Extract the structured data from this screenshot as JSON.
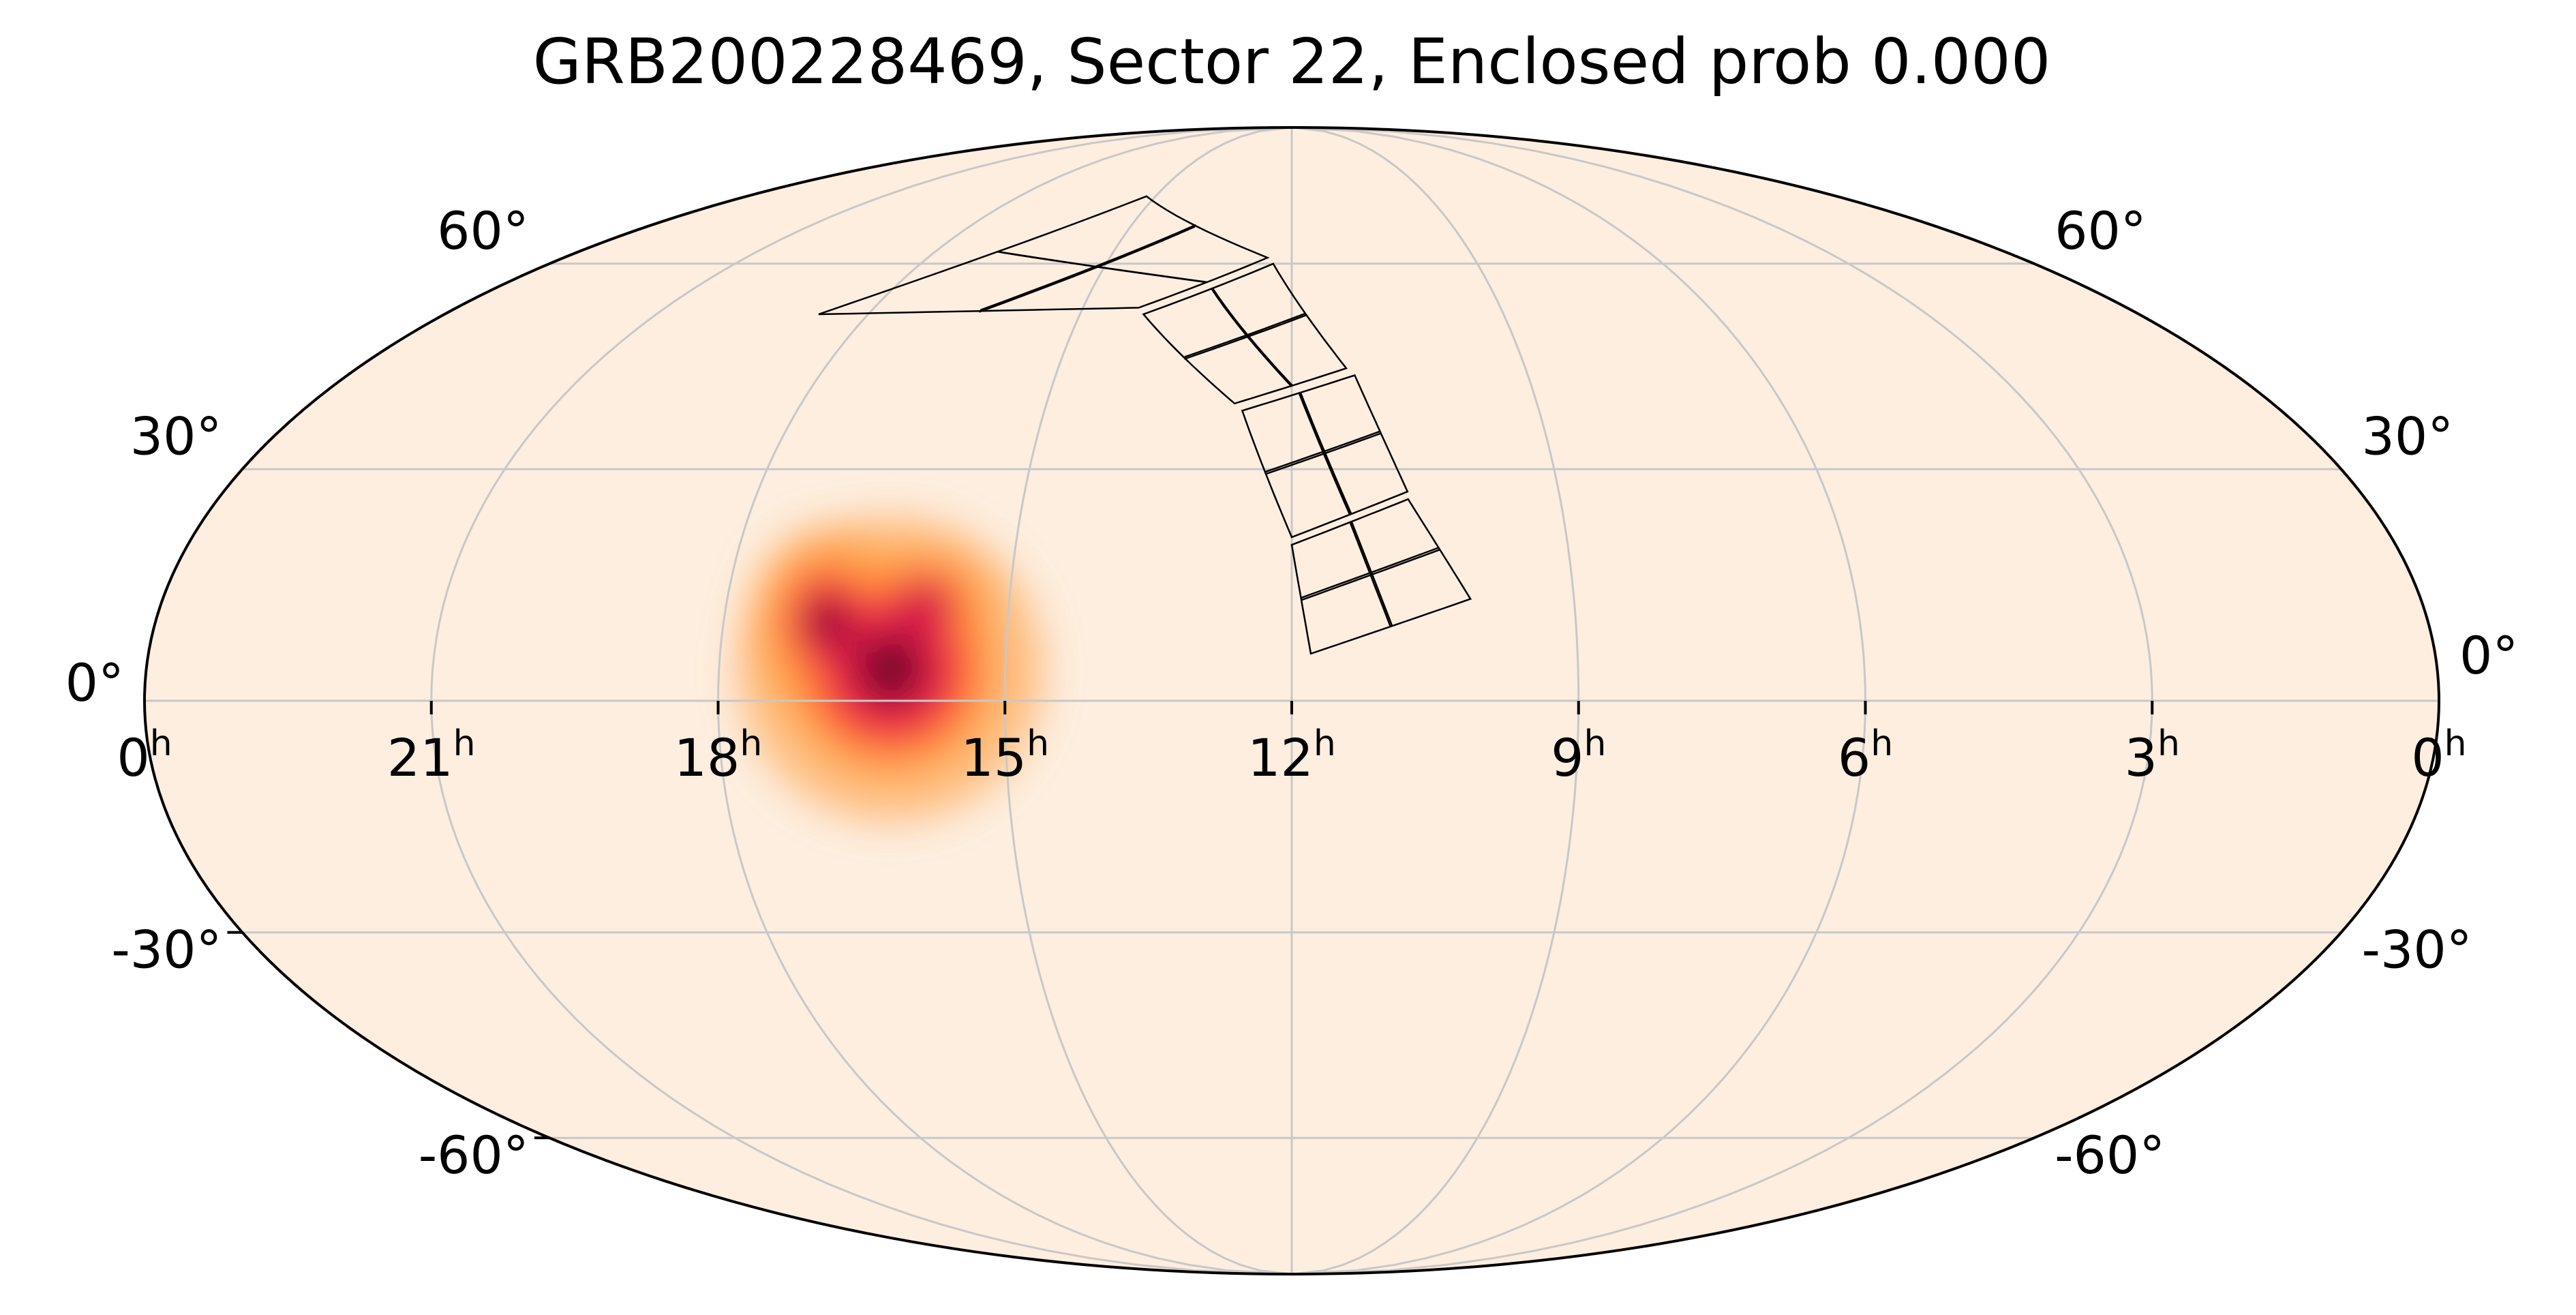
{
  "chart_data": {
    "type": "heatmap",
    "projection": "mollweide",
    "title": "GRB200228469, Sector 22, Enclosed prob 0.000",
    "grid": true,
    "colors": {
      "background": "#fdeee0",
      "grid": "#c8c8c8",
      "outline": "#000000",
      "heat_low": "#ff9a3c",
      "heat_mid": "#ff3b3b",
      "heat_high": "#d0104c",
      "heat_peak": "#3a0000"
    },
    "ra_ticks": [
      "0",
      "21",
      "18",
      "15",
      "12",
      "9",
      "6",
      "3",
      "0"
    ],
    "ra_tick_values_hours": [
      24,
      21,
      18,
      15,
      12,
      9,
      6,
      3,
      0
    ],
    "ra_unit": "h",
    "dec_ticks_left": [
      {
        "dec": 60,
        "label": "60°"
      },
      {
        "dec": 30,
        "label": "30°"
      },
      {
        "dec": 0,
        "label": "0°"
      },
      {
        "dec": -30,
        "label": "-30°"
      },
      {
        "dec": -60,
        "label": "-60°"
      }
    ],
    "dec_ticks_right": [
      {
        "dec": 60,
        "label": "60°"
      },
      {
        "dec": 30,
        "label": "30°"
      },
      {
        "dec": 0,
        "label": "0°"
      },
      {
        "dec": -30,
        "label": "-30°"
      },
      {
        "dec": -60,
        "label": "-60°"
      }
    ],
    "probability_blobs": [
      {
        "ra_h": 16.2,
        "dec": 4,
        "sigma_ra_deg": 11,
        "sigma_dec_deg": 9,
        "weight": 1.0
      },
      {
        "ra_h": 16.9,
        "dec": 10,
        "sigma_ra_deg": 6,
        "sigma_dec_deg": 6,
        "weight": 0.9
      },
      {
        "ra_h": 15.9,
        "dec": 12,
        "sigma_ra_deg": 7,
        "sigma_dec_deg": 5,
        "weight": 0.55
      }
    ],
    "sector_footprint": {
      "sector": 22,
      "cameras": 4,
      "ccds_per_camera_grid": [
        2,
        2
      ],
      "cameras_coords": [
        {
          "ra_h": [
            10.1,
            11.8,
            12.0,
            10.7
          ],
          "dec": [
            13,
            6,
            20,
            26
          ]
        },
        {
          "ra_h": [
            10.7,
            12.0,
            12.6,
            11.2
          ],
          "dec": [
            27,
            21,
            38,
            43
          ]
        },
        {
          "ra_h": [
            11.3,
            12.7,
            14.1,
            12.3
          ],
          "dec": [
            44,
            39,
            52,
            60
          ]
        },
        {
          "ra_h": [
            12.4,
            14.2,
            18.7,
            15.2
          ],
          "dec": [
            61,
            53,
            52,
            72
          ]
        }
      ]
    }
  }
}
